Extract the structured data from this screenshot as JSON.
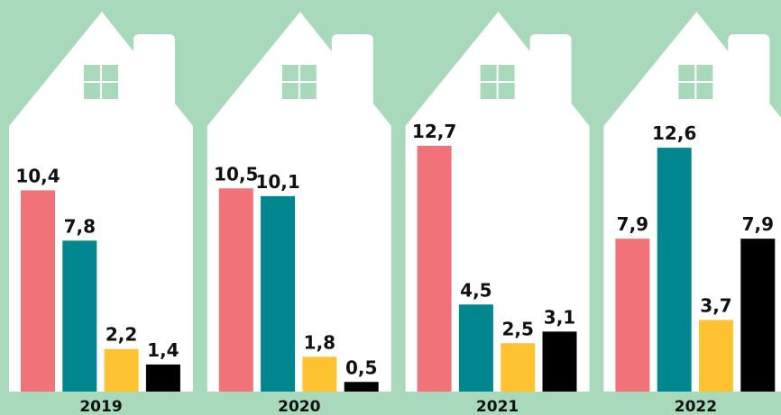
{
  "chart_data": {
    "type": "bar",
    "categories": [
      "2019",
      "2020",
      "2021",
      "2022"
    ],
    "series": [
      {
        "color": "#f2727a",
        "values": [
          10.4,
          10.5,
          12.7,
          7.9
        ],
        "value_labels": [
          "10,4",
          "10,5",
          "12,7",
          "7,9"
        ]
      },
      {
        "color": "#00868f",
        "values": [
          7.8,
          10.1,
          4.5,
          12.6
        ],
        "value_labels": [
          "7,8",
          "10,1",
          "4,5",
          "12,6"
        ]
      },
      {
        "color": "#ffc230",
        "values": [
          2.2,
          1.8,
          2.5,
          3.7
        ],
        "value_labels": [
          "2,2",
          "1,8",
          "2,5",
          "3,7"
        ]
      },
      {
        "color": "#000000",
        "values": [
          1.4,
          0.5,
          3.1,
          7.9
        ],
        "value_labels": [
          "1,4",
          "0,5",
          "3,1",
          "7,9"
        ]
      }
    ]
  }
}
